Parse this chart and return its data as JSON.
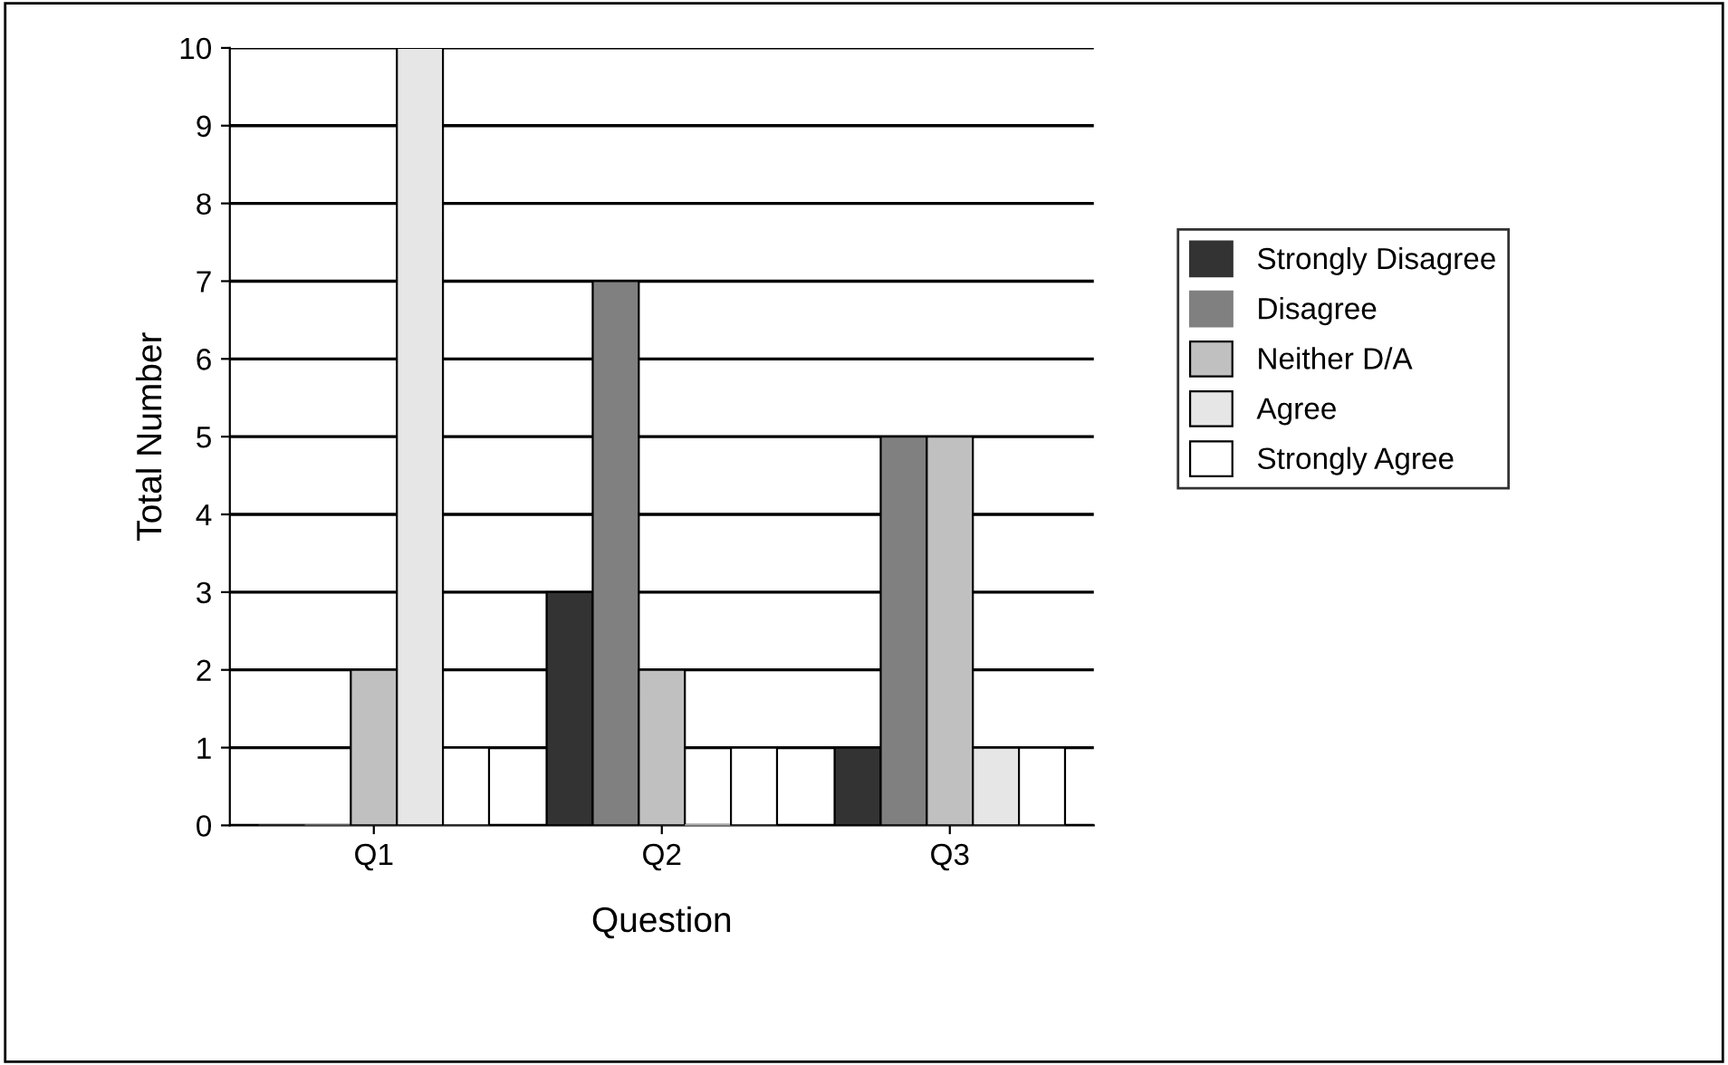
{
  "chart_data": {
    "type": "bar",
    "xlabel": "Question",
    "ylabel": "Total Number",
    "categories": [
      "Q1",
      "Q2",
      "Q3"
    ],
    "series": [
      {
        "name": "Strongly Disagree",
        "color": "#333333",
        "values": [
          0,
          3,
          1
        ]
      },
      {
        "name": "Disagree",
        "color": "#808080",
        "values": [
          0,
          7,
          5
        ]
      },
      {
        "name": "Neither D/A",
        "color": "#c0c0c0",
        "values": [
          2,
          2,
          5
        ]
      },
      {
        "name": "Agree",
        "color": "#e6e6e6",
        "values": [
          10,
          0,
          1
        ]
      },
      {
        "name": "Strongly Agree",
        "color": "#ffffff",
        "values": [
          1,
          1,
          1
        ]
      }
    ],
    "ylim": [
      0,
      10
    ],
    "yticks": [
      0,
      1,
      2,
      3,
      4,
      5,
      6,
      7,
      8,
      9,
      10
    ],
    "grid": "y",
    "legend": "right"
  }
}
